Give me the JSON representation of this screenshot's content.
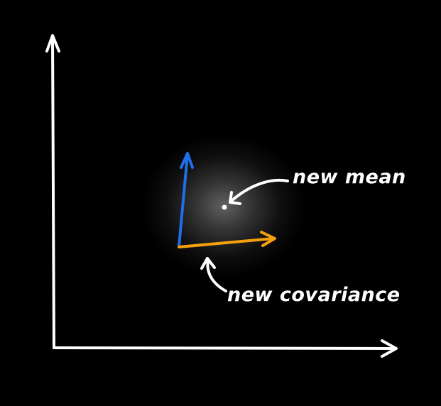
{
  "labels": {
    "mean": "new mean",
    "covariance": "new covariance"
  },
  "colors": {
    "background": "#000000",
    "axes": "#ffffff",
    "vector_vertical": "#1f6fe8",
    "vector_horizontal": "#f5a00f",
    "annotation": "#ffffff",
    "glow": "#ffffff"
  }
}
